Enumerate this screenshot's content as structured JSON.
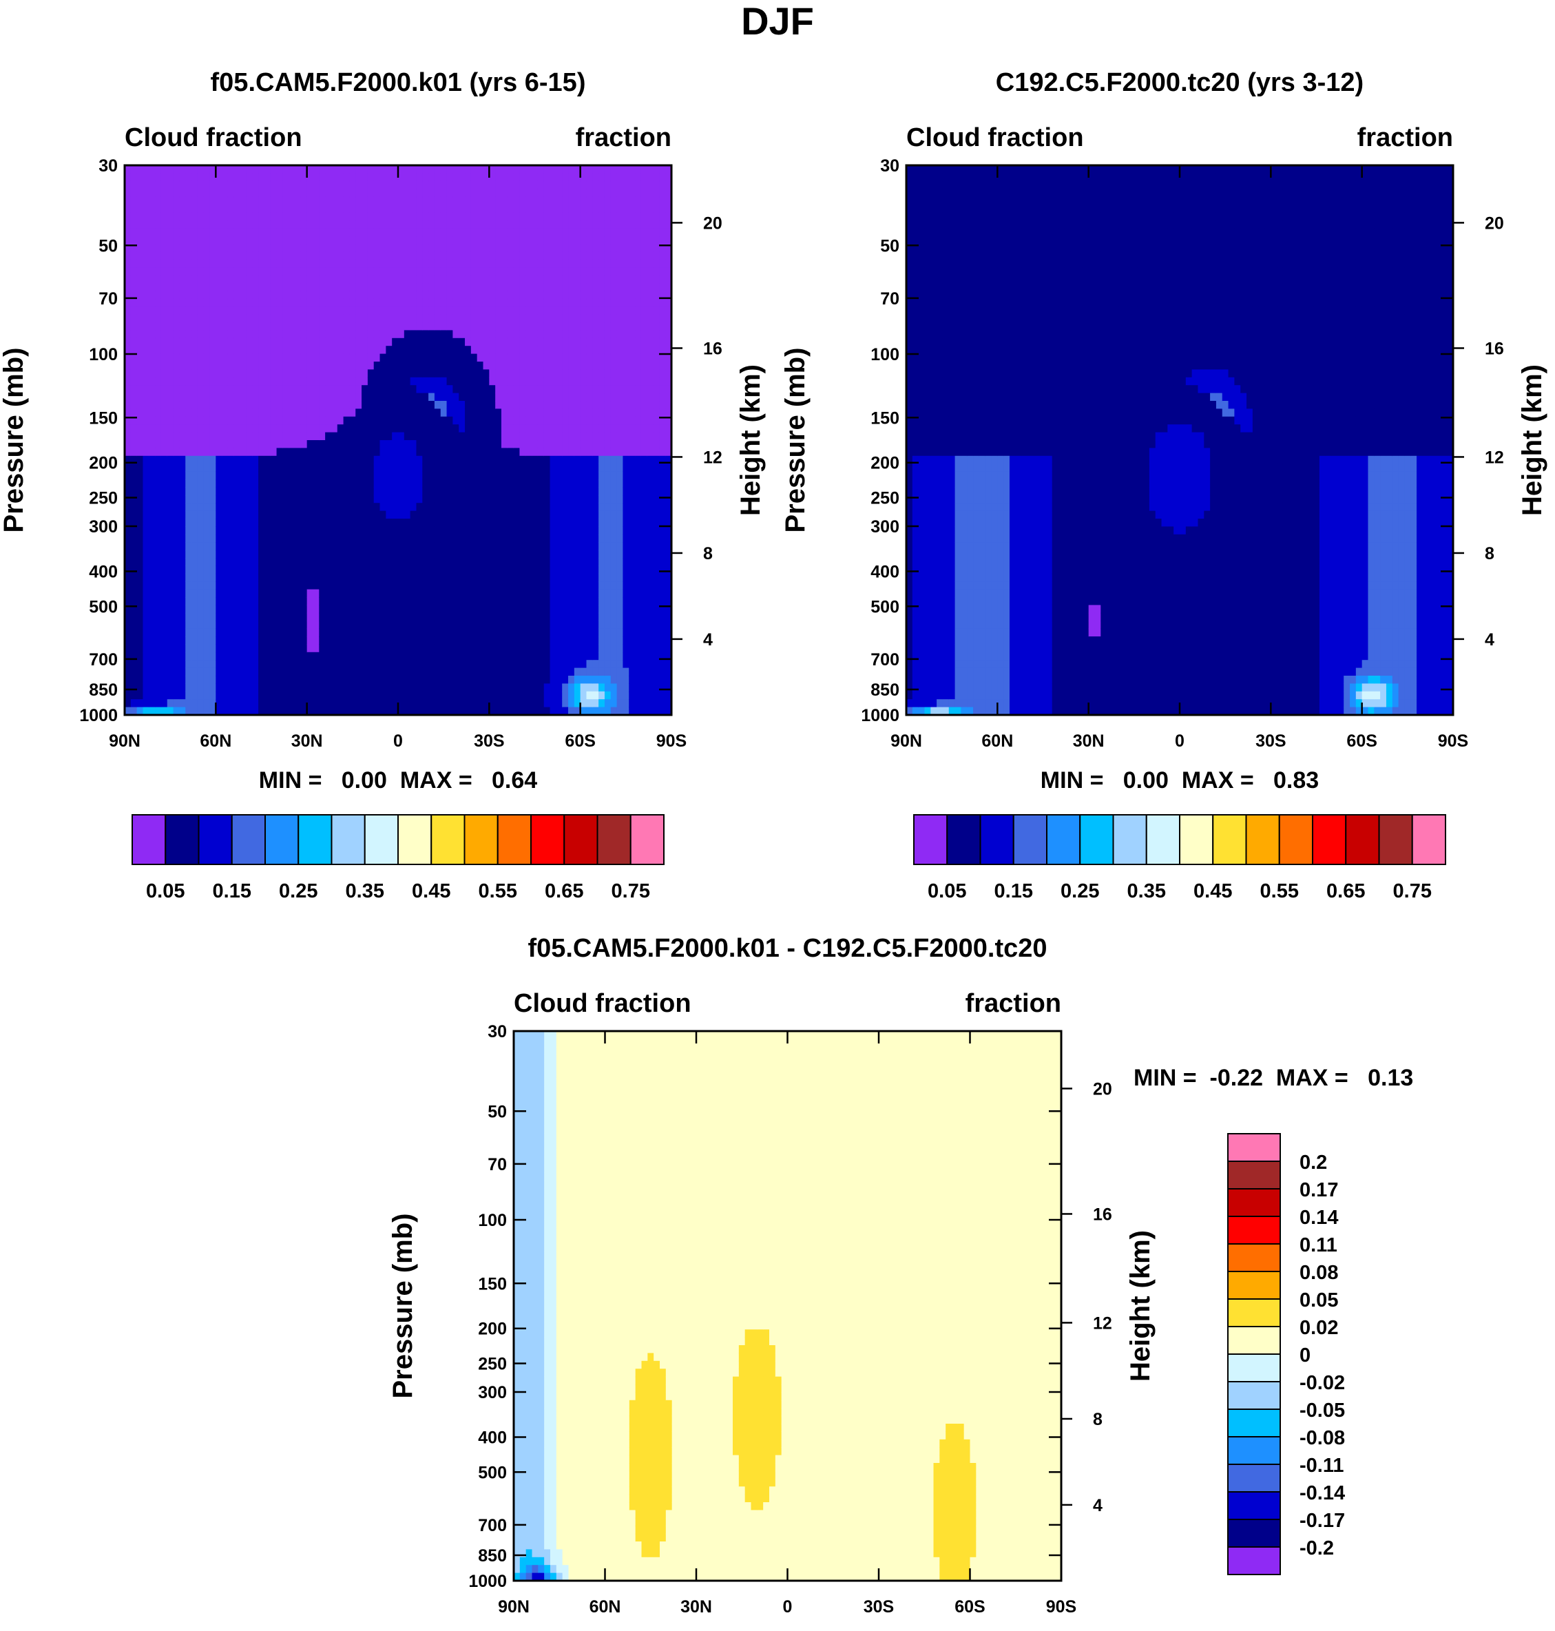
{
  "figure": {
    "title": "DJF"
  },
  "chart_data": [
    {
      "type": "heatmap",
      "title": "f05.CAM5.F2000.k01 (yrs 6-15)",
      "subtitle_left": "Cloud fraction",
      "subtitle_right": "fraction",
      "xlabel": "",
      "ylabel": "Pressure (mb)",
      "ylabel_right": "Height (km)",
      "x_ticks": [
        "90N",
        "60N",
        "30N",
        "0",
        "30S",
        "60S",
        "90S"
      ],
      "x_tick_values": [
        90,
        60,
        30,
        0,
        -30,
        -60,
        -90
      ],
      "y_ticks": [
        "30",
        "50",
        "70",
        "100",
        "150",
        "200",
        "250",
        "300",
        "400",
        "500",
        "700",
        "850",
        "1000"
      ],
      "y_tick_values": [
        30,
        50,
        70,
        100,
        150,
        200,
        250,
        300,
        400,
        500,
        700,
        850,
        1000
      ],
      "y_right_ticks": [
        "20",
        "16",
        "12",
        "8",
        "4"
      ],
      "y_right_values": [
        20,
        16,
        12,
        8,
        4
      ],
      "xlim": [
        90,
        -90
      ],
      "ylim": [
        1000,
        30
      ],
      "stats": "MIN =   0.00  MAX =   0.64",
      "colorbar": {
        "orientation": "horizontal",
        "colors": [
          "#8f2af4",
          "#00008a",
          "#0000d0",
          "#4169e1",
          "#1e90ff",
          "#00bfff",
          "#a0d2ff",
          "#d2f5ff",
          "#ffffc8",
          "#ffe132",
          "#ffaa00",
          "#ff6e00",
          "#ff0000",
          "#c80000",
          "#a02828",
          "#ff78b4"
        ],
        "labels": [
          "0.05",
          "0.15",
          "0.25",
          "0.35",
          "0.45",
          "0.55",
          "0.65",
          "0.75"
        ]
      }
    },
    {
      "type": "heatmap",
      "title": "C192.C5.F2000.tc20 (yrs 3-12)",
      "subtitle_left": "Cloud fraction",
      "subtitle_right": "fraction",
      "xlabel": "",
      "ylabel": "Pressure (mb)",
      "ylabel_right": "Height (km)",
      "x_ticks": [
        "90N",
        "60N",
        "30N",
        "0",
        "30S",
        "60S",
        "90S"
      ],
      "x_tick_values": [
        90,
        60,
        30,
        0,
        -30,
        -60,
        -90
      ],
      "y_ticks": [
        "30",
        "50",
        "70",
        "100",
        "150",
        "200",
        "250",
        "300",
        "400",
        "500",
        "700",
        "850",
        "1000"
      ],
      "y_tick_values": [
        30,
        50,
        70,
        100,
        150,
        200,
        250,
        300,
        400,
        500,
        700,
        850,
        1000
      ],
      "y_right_ticks": [
        "20",
        "16",
        "12",
        "8",
        "4"
      ],
      "y_right_values": [
        20,
        16,
        12,
        8,
        4
      ],
      "xlim": [
        90,
        -90
      ],
      "ylim": [
        1000,
        30
      ],
      "stats": "MIN =   0.00  MAX =   0.83",
      "colorbar": {
        "orientation": "horizontal",
        "colors": [
          "#8f2af4",
          "#00008a",
          "#0000d0",
          "#4169e1",
          "#1e90ff",
          "#00bfff",
          "#a0d2ff",
          "#d2f5ff",
          "#ffffc8",
          "#ffe132",
          "#ffaa00",
          "#ff6e00",
          "#ff0000",
          "#c80000",
          "#a02828",
          "#ff78b4"
        ],
        "labels": [
          "0.05",
          "0.15",
          "0.25",
          "0.35",
          "0.45",
          "0.55",
          "0.65",
          "0.75"
        ]
      }
    },
    {
      "type": "heatmap",
      "title": "f05.CAM5.F2000.k01 - C192.C5.F2000.tc20",
      "subtitle_left": "Cloud fraction",
      "subtitle_right": "fraction",
      "xlabel": "",
      "ylabel": "Pressure (mb)",
      "ylabel_right": "Height (km)",
      "x_ticks": [
        "90N",
        "60N",
        "30N",
        "0",
        "30S",
        "60S",
        "90S"
      ],
      "x_tick_values": [
        90,
        60,
        30,
        0,
        -30,
        -60,
        -90
      ],
      "y_ticks": [
        "30",
        "50",
        "70",
        "100",
        "150",
        "200",
        "250",
        "300",
        "400",
        "500",
        "700",
        "850",
        "1000"
      ],
      "y_tick_values": [
        30,
        50,
        70,
        100,
        150,
        200,
        250,
        300,
        400,
        500,
        700,
        850,
        1000
      ],
      "y_right_ticks": [
        "20",
        "16",
        "12",
        "8",
        "4"
      ],
      "y_right_values": [
        20,
        16,
        12,
        8,
        4
      ],
      "xlim": [
        90,
        -90
      ],
      "ylim": [
        1000,
        30
      ],
      "stats": "MIN =  -0.22  MAX =   0.13",
      "colorbar": {
        "orientation": "vertical",
        "colors": [
          "#8f2af4",
          "#00008a",
          "#0000d0",
          "#4169e1",
          "#1e90ff",
          "#00bfff",
          "#a0d2ff",
          "#d2f5ff",
          "#ffffc8",
          "#ffe132",
          "#ffaa00",
          "#ff6e00",
          "#ff0000",
          "#c80000",
          "#a02828",
          "#ff78b4"
        ],
        "labels": [
          "-0.2",
          "-0.17",
          "-0.14",
          "-0.11",
          "-0.08",
          "-0.05",
          "-0.02",
          "0",
          "0.02",
          "0.05",
          "0.08",
          "0.11",
          "0.14",
          "0.17",
          "0.2"
        ]
      }
    }
  ]
}
